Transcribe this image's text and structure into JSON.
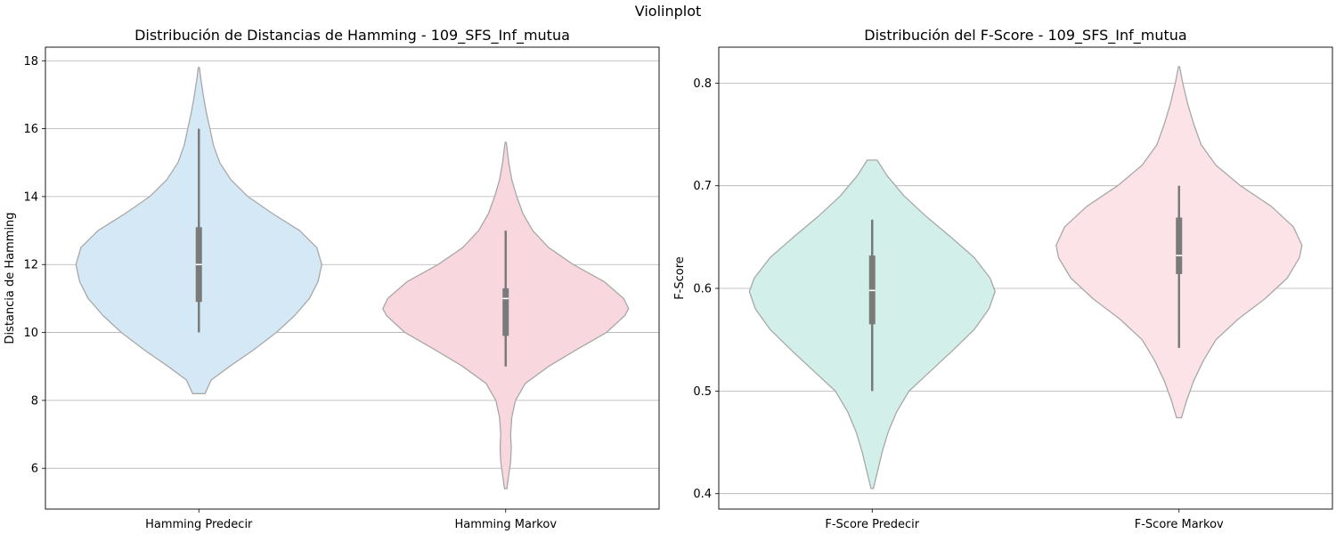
{
  "figure_title": "Violinplot",
  "chart_data": [
    {
      "type": "violin",
      "title": "Distribución de Distancias de Hamming - 109_SFS_Inf_mutua",
      "xlabel": "",
      "ylabel": "Distancia de Hamming",
      "ylim": [
        4.8,
        18.4
      ],
      "yticks": [
        6,
        8,
        10,
        12,
        14,
        16,
        18
      ],
      "grid": "y",
      "categories": [
        "Hamming Predecir",
        "Hamming Markov"
      ],
      "series": [
        {
          "category": "Hamming Predecir",
          "color": "#d4e9f5",
          "range": [
            8.2,
            17.8
          ],
          "min": 10,
          "q1": 10.9,
          "median": 12,
          "q3": 13.1,
          "max": 16,
          "density": [
            [
              8.2,
              0.05
            ],
            [
              8.6,
              0.1
            ],
            [
              9.0,
              0.25
            ],
            [
              9.5,
              0.45
            ],
            [
              10.0,
              0.63
            ],
            [
              10.5,
              0.78
            ],
            [
              11.0,
              0.9
            ],
            [
              11.5,
              0.97
            ],
            [
              12.0,
              1.0
            ],
            [
              12.5,
              0.96
            ],
            [
              13.0,
              0.82
            ],
            [
              13.5,
              0.6
            ],
            [
              14.0,
              0.4
            ],
            [
              14.5,
              0.26
            ],
            [
              15.0,
              0.17
            ],
            [
              15.5,
              0.12
            ],
            [
              16.0,
              0.09
            ],
            [
              16.5,
              0.06
            ],
            [
              17.0,
              0.035
            ],
            [
              17.5,
              0.015
            ],
            [
              17.8,
              0.005
            ]
          ]
        },
        {
          "category": "Hamming Markov",
          "color": "#f8d7de",
          "range": [
            5.4,
            15.6
          ],
          "min": 9,
          "q1": 9.9,
          "median": 11,
          "q3": 11.3,
          "max": 13,
          "density": [
            [
              5.4,
              0.01
            ],
            [
              5.8,
              0.025
            ],
            [
              6.2,
              0.04
            ],
            [
              6.6,
              0.045
            ],
            [
              7.0,
              0.04
            ],
            [
              7.5,
              0.05
            ],
            [
              8.0,
              0.08
            ],
            [
              8.5,
              0.16
            ],
            [
              9.0,
              0.35
            ],
            [
              9.5,
              0.58
            ],
            [
              10.0,
              0.82
            ],
            [
              10.5,
              0.97
            ],
            [
              10.7,
              1.0
            ],
            [
              11.0,
              0.96
            ],
            [
              11.5,
              0.8
            ],
            [
              12.0,
              0.55
            ],
            [
              12.5,
              0.35
            ],
            [
              13.0,
              0.22
            ],
            [
              13.5,
              0.14
            ],
            [
              14.0,
              0.09
            ],
            [
              14.5,
              0.05
            ],
            [
              15.0,
              0.025
            ],
            [
              15.6,
              0.005
            ]
          ]
        }
      ]
    },
    {
      "type": "violin",
      "title": "Distribución del F-Score - 109_SFS_Inf_mutua",
      "xlabel": "",
      "ylabel": "F-Score",
      "ylim": [
        0.385,
        0.835
      ],
      "yticks": [
        0.4,
        0.5,
        0.6,
        0.7,
        0.8
      ],
      "grid": "y",
      "categories": [
        "F-Score Predecir",
        "F-Score Markov"
      ],
      "series": [
        {
          "category": "F-Score Predecir",
          "color": "#d2efe9",
          "range": [
            0.405,
            0.725
          ],
          "min": 0.5,
          "q1": 0.565,
          "median": 0.598,
          "q3": 0.632,
          "max": 0.667,
          "density": [
            [
              0.405,
              0.01
            ],
            [
              0.42,
              0.04
            ],
            [
              0.44,
              0.08
            ],
            [
              0.46,
              0.13
            ],
            [
              0.48,
              0.2
            ],
            [
              0.5,
              0.3
            ],
            [
              0.52,
              0.48
            ],
            [
              0.54,
              0.66
            ],
            [
              0.56,
              0.83
            ],
            [
              0.58,
              0.95
            ],
            [
              0.597,
              1.0
            ],
            [
              0.61,
              0.96
            ],
            [
              0.63,
              0.83
            ],
            [
              0.65,
              0.64
            ],
            [
              0.67,
              0.44
            ],
            [
              0.69,
              0.26
            ],
            [
              0.71,
              0.12
            ],
            [
              0.725,
              0.04
            ]
          ]
        },
        {
          "category": "F-Score Markov",
          "color": "#fbe3e8",
          "range": [
            0.474,
            0.816
          ],
          "min": 0.542,
          "q1": 0.614,
          "median": 0.632,
          "q3": 0.669,
          "max": 0.7,
          "density": [
            [
              0.474,
              0.02
            ],
            [
              0.49,
              0.06
            ],
            [
              0.51,
              0.12
            ],
            [
              0.53,
              0.2
            ],
            [
              0.55,
              0.3
            ],
            [
              0.57,
              0.48
            ],
            [
              0.59,
              0.7
            ],
            [
              0.61,
              0.88
            ],
            [
              0.63,
              0.98
            ],
            [
              0.642,
              1.0
            ],
            [
              0.66,
              0.93
            ],
            [
              0.68,
              0.75
            ],
            [
              0.7,
              0.5
            ],
            [
              0.72,
              0.3
            ],
            [
              0.74,
              0.18
            ],
            [
              0.76,
              0.12
            ],
            [
              0.78,
              0.07
            ],
            [
              0.8,
              0.03
            ],
            [
              0.816,
              0.005
            ]
          ]
        }
      ]
    }
  ]
}
